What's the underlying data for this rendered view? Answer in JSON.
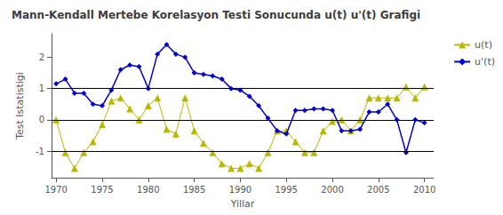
{
  "chart_data": {
    "type": "line",
    "title": "Mann-Kendall Mertebe Korelasyon Testi Sonucunda u(t) u'(t) Grafigi",
    "xlabel": "Yillar",
    "ylabel": "Test Istatistigi",
    "x": [
      1970,
      1971,
      1972,
      1973,
      1974,
      1975,
      1976,
      1977,
      1978,
      1979,
      1980,
      1981,
      1982,
      1983,
      1984,
      1985,
      1986,
      1987,
      1988,
      1989,
      1990,
      1991,
      1992,
      1993,
      1994,
      1995,
      1996,
      1997,
      1998,
      1999,
      2000,
      2001,
      2002,
      2003,
      2004,
      2005,
      2006,
      2007,
      2008,
      2009,
      2010
    ],
    "series": [
      {
        "name": "u(t)",
        "color": "#b8b800",
        "marker": "triangle",
        "values": [
          0.0,
          -1.05,
          -1.55,
          -1.05,
          -0.7,
          -0.15,
          0.6,
          0.7,
          0.35,
          0.0,
          0.45,
          0.7,
          -0.3,
          -0.45,
          0.7,
          -0.35,
          -0.75,
          -1.05,
          -1.4,
          -1.55,
          -1.55,
          -1.4,
          -1.55,
          -1.05,
          -0.35,
          -0.35,
          -0.7,
          -1.05,
          -1.05,
          -0.35,
          -0.05,
          0.0,
          -0.35,
          0.0,
          0.7,
          0.7,
          0.7,
          0.7,
          1.05,
          0.7,
          1.05
        ]
      },
      {
        "name": "u'(t)",
        "color": "#0000cc",
        "marker": "diamond",
        "values": [
          1.15,
          1.3,
          0.85,
          0.85,
          0.5,
          0.45,
          0.95,
          1.6,
          1.75,
          1.7,
          1.0,
          2.1,
          2.4,
          2.1,
          2.0,
          1.5,
          1.45,
          1.4,
          1.3,
          1.0,
          0.95,
          0.75,
          0.45,
          0.05,
          -0.35,
          -0.45,
          0.3,
          0.3,
          0.35,
          0.35,
          0.3,
          -0.35,
          -0.35,
          -0.3,
          0.25,
          0.25,
          0.5,
          0.0,
          -1.05,
          0.0,
          -0.1
        ]
      }
    ],
    "hlines": [
      -1,
      0,
      1
    ],
    "xlim": [
      1969.5,
      2011
    ],
    "xticks": [
      1970,
      1975,
      1980,
      1985,
      1990,
      1995,
      2000,
      2005,
      2010
    ],
    "ylim": [
      -1.85,
      2.75
    ],
    "yticks": [
      -1,
      0,
      1,
      2
    ],
    "grid": false,
    "legend": "upper right"
  }
}
